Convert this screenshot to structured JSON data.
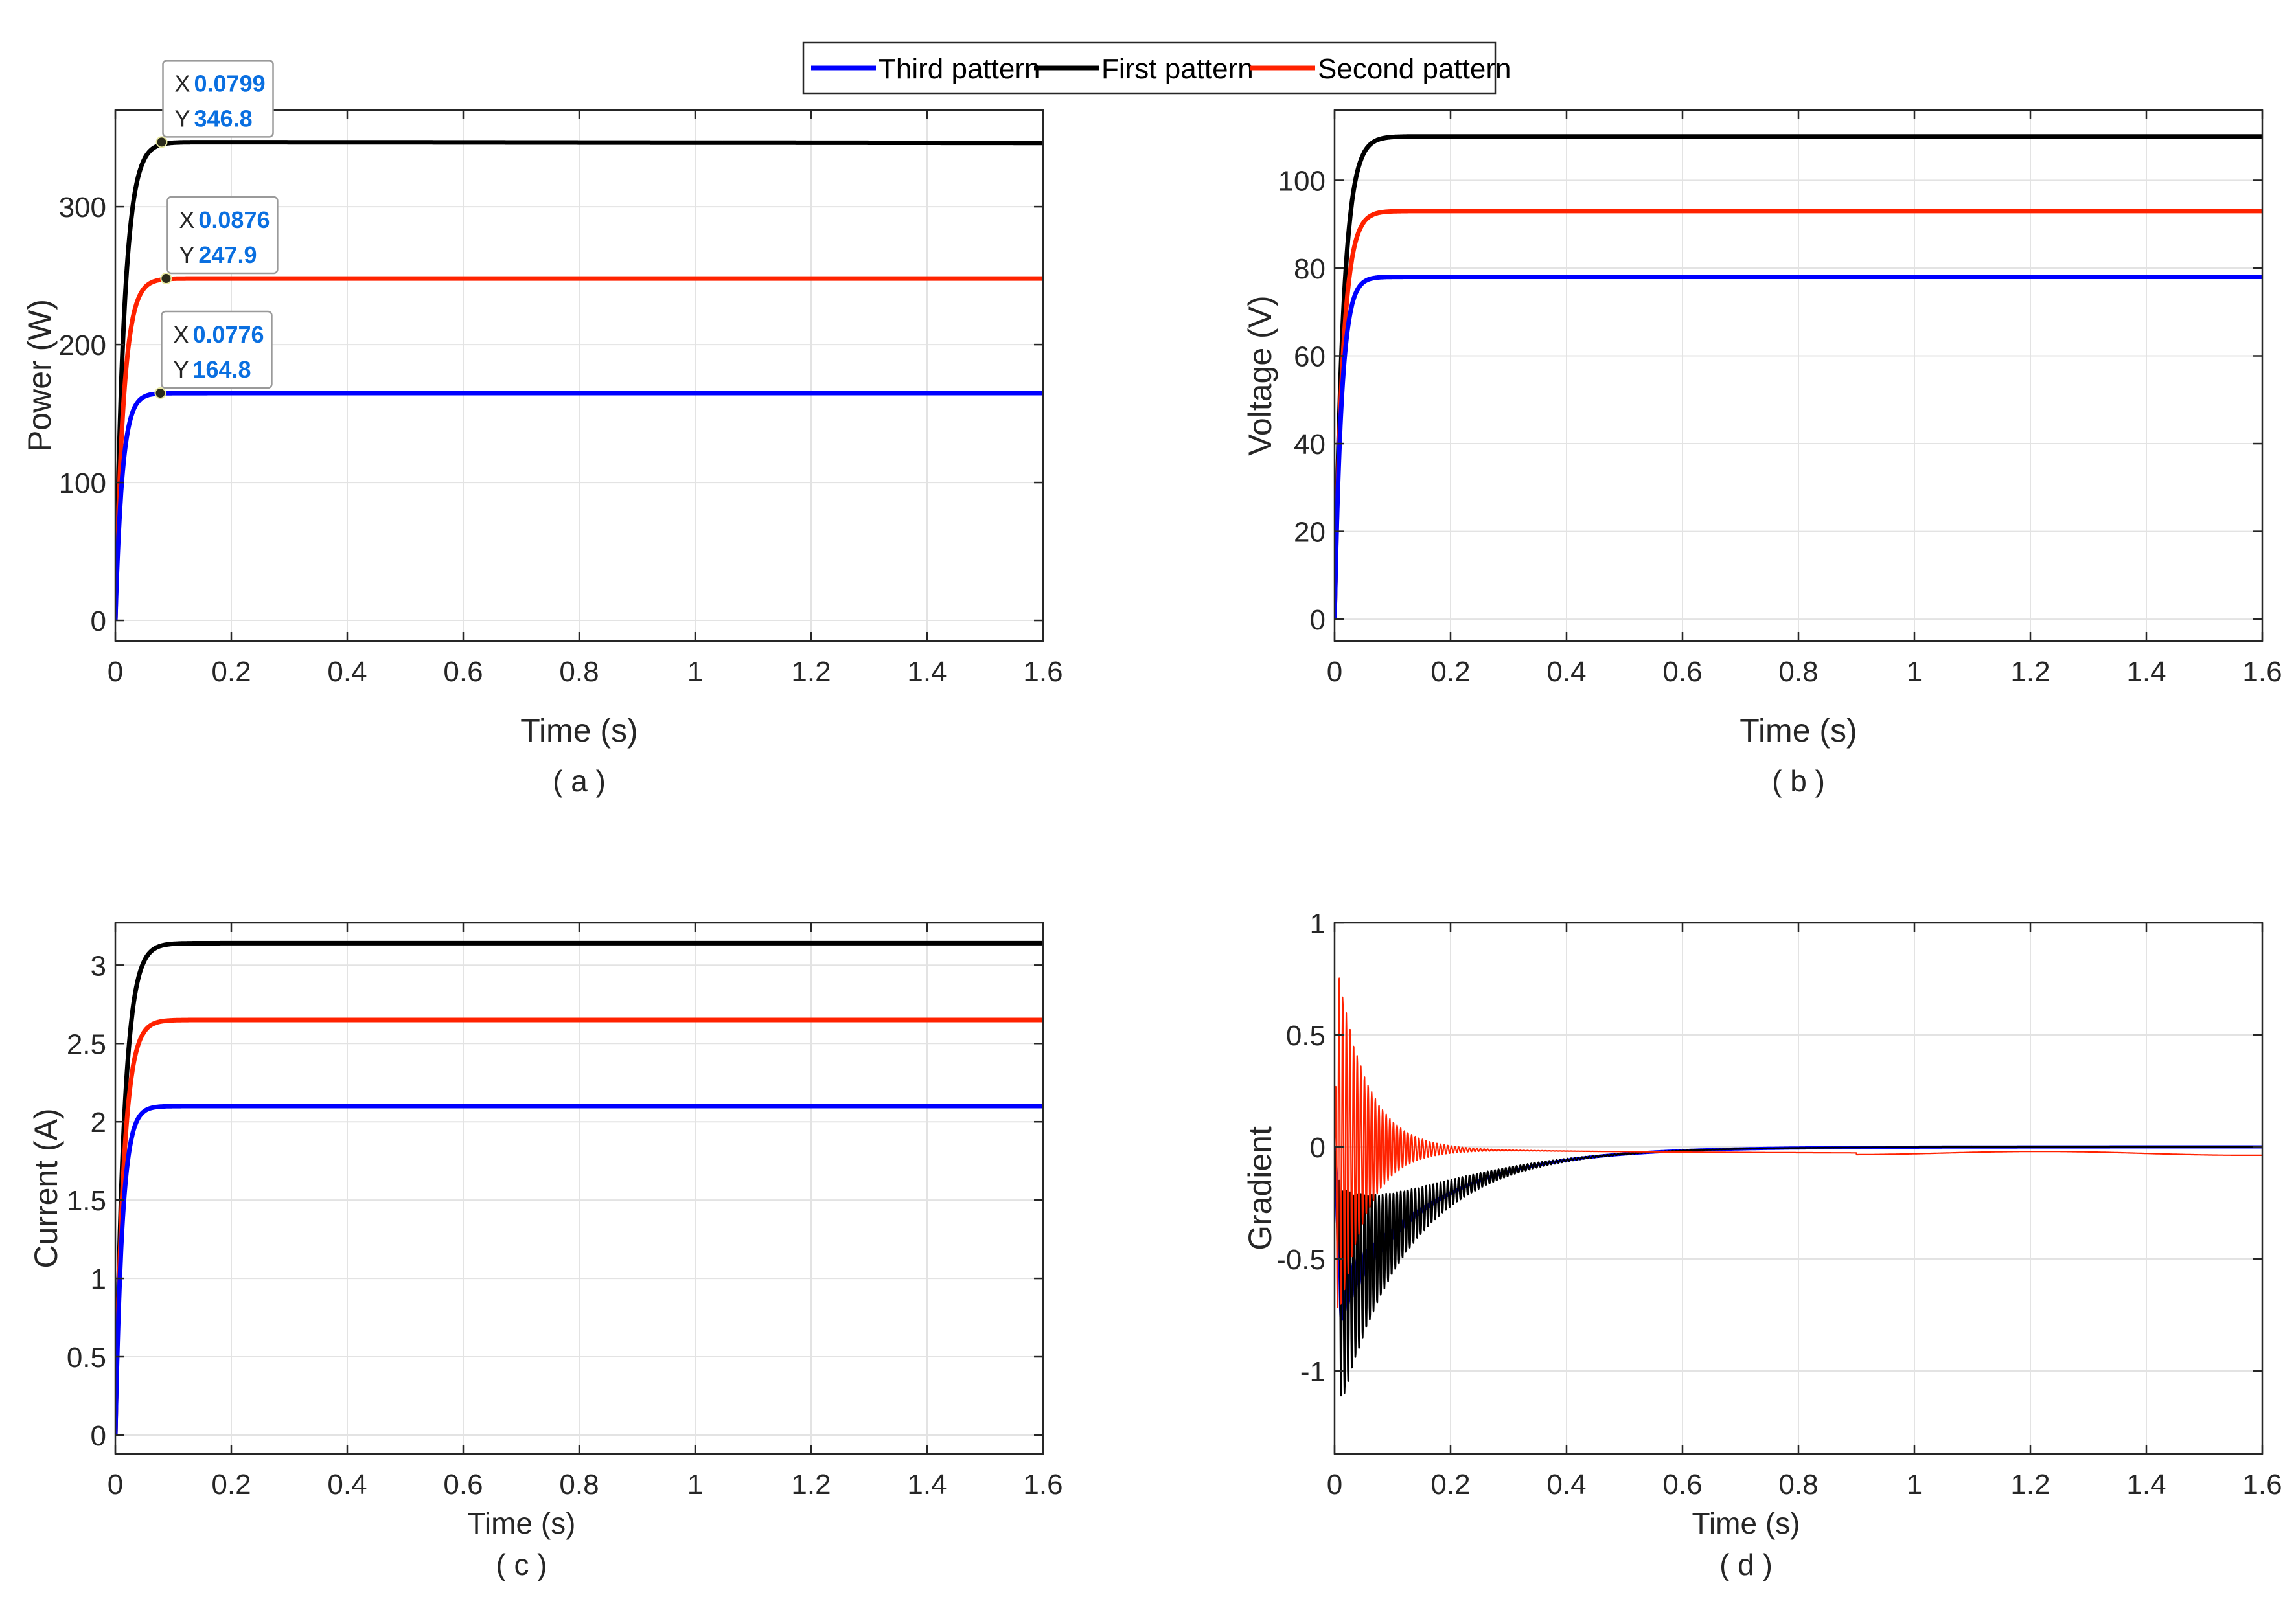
{
  "colors": {
    "third": "#0000ff",
    "first": "#000000",
    "second": "#ff2200",
    "grid": "#e3e3e3",
    "axis": "#262626",
    "datatip": "#0a6fe0"
  },
  "legend": {
    "placement": "top-center",
    "entries": [
      {
        "label": "Third pattern",
        "series": "third"
      },
      {
        "label": "First pattern",
        "series": "first"
      },
      {
        "label": "Second pattern",
        "series": "second"
      }
    ]
  },
  "chart_data": [
    {
      "id": "a",
      "type": "line",
      "caption": "( a )",
      "xlabel": "Time (s)",
      "ylabel": "Power (W)",
      "xlim": [
        0,
        1.6
      ],
      "ylim": [
        -15,
        370
      ],
      "grid": true,
      "xticks": [
        0,
        0.2,
        0.4,
        0.6,
        0.8,
        1,
        1.2,
        1.4,
        1.6
      ],
      "xtick_labels": [
        "0",
        "0.2",
        "0.4",
        "0.6",
        "0.8",
        "1",
        "1.2",
        "1.4",
        "1.6"
      ],
      "yticks": [
        0,
        100,
        200,
        300
      ],
      "ytick_labels": [
        "0",
        "100",
        "200",
        "300"
      ],
      "series": [
        {
          "name": "Third pattern",
          "key": "third",
          "final": 164.8,
          "tau": 0.012,
          "end": 164.8
        },
        {
          "name": "First pattern",
          "key": "first",
          "final": 346.8,
          "tau": 0.015,
          "end": 346.2
        },
        {
          "name": "Second pattern",
          "key": "second",
          "final": 247.9,
          "tau": 0.014,
          "end": 247.9
        }
      ],
      "datatips": [
        {
          "series": "first",
          "x": 0.0799,
          "y": 346.8,
          "x_label": "X",
          "x_text": "0.0799",
          "y_label": "Y",
          "y_text": "346.8"
        },
        {
          "series": "second",
          "x": 0.0876,
          "y": 247.9,
          "x_label": "X",
          "x_text": "0.0876",
          "y_label": "Y",
          "y_text": "247.9"
        },
        {
          "series": "third",
          "x": 0.0776,
          "y": 164.8,
          "x_label": "X",
          "x_text": "0.0776",
          "y_label": "Y",
          "y_text": "164.8"
        }
      ]
    },
    {
      "id": "b",
      "type": "line",
      "caption": "( b )",
      "xlabel": "Time (s)",
      "ylabel": "Voltage (V)",
      "xlim": [
        0,
        1.6
      ],
      "ylim": [
        -5,
        116
      ],
      "grid": true,
      "xticks": [
        0,
        0.2,
        0.4,
        0.6,
        0.8,
        1,
        1.2,
        1.4,
        1.6
      ],
      "xtick_labels": [
        "0",
        "0.2",
        "0.4",
        "0.6",
        "0.8",
        "1",
        "1.2",
        "1.4",
        "1.6"
      ],
      "yticks": [
        0,
        20,
        40,
        60,
        80,
        100
      ],
      "ytick_labels": [
        "0",
        "20",
        "40",
        "60",
        "80",
        "100"
      ],
      "series": [
        {
          "name": "Third pattern",
          "key": "third",
          "final": 78,
          "tau": 0.012,
          "end": 78
        },
        {
          "name": "First pattern",
          "key": "first",
          "final": 110,
          "tau": 0.015,
          "end": 110
        },
        {
          "name": "Second pattern",
          "key": "second",
          "final": 93,
          "tau": 0.014,
          "end": 93
        }
      ]
    },
    {
      "id": "c",
      "type": "line",
      "caption": "( c )",
      "xlabel": "Time (s)",
      "ylabel": "Current (A)",
      "xlim": [
        0,
        1.6
      ],
      "ylim": [
        -0.12,
        3.27
      ],
      "grid": true,
      "xticks": [
        0,
        0.2,
        0.4,
        0.6,
        0.8,
        1,
        1.2,
        1.4,
        1.6
      ],
      "xtick_labels": [
        "0",
        "0.2",
        "0.4",
        "0.6",
        "0.8",
        "1",
        "1.2",
        "1.4",
        "1.6"
      ],
      "yticks": [
        0,
        0.5,
        1,
        1.5,
        2,
        2.5,
        3
      ],
      "ytick_labels": [
        "0",
        "0.5",
        "1",
        "1.5",
        "2",
        "2.5",
        "3"
      ],
      "series": [
        {
          "name": "Third pattern",
          "key": "third",
          "final": 2.1,
          "tau": 0.012,
          "end": 2.1
        },
        {
          "name": "First pattern",
          "key": "first",
          "final": 3.14,
          "tau": 0.015,
          "end": 3.14
        },
        {
          "name": "Second pattern",
          "key": "second",
          "final": 2.65,
          "tau": 0.014,
          "end": 2.65
        }
      ]
    },
    {
      "id": "d",
      "type": "line",
      "caption": "( d )",
      "xlabel": "Time (s)",
      "ylabel": "Gradient",
      "xlim": [
        0,
        1.6
      ],
      "ylim": [
        -1.37,
        1
      ],
      "grid": true,
      "xticks": [
        0,
        0.2,
        0.4,
        0.6,
        0.8,
        1,
        1.2,
        1.4,
        1.6
      ],
      "xtick_labels": [
        "0",
        "0.2",
        "0.4",
        "0.6",
        "0.8",
        "1",
        "1.2",
        "1.4",
        "1.6"
      ],
      "yticks": [
        -1,
        -0.5,
        0,
        0.5,
        1
      ],
      "ytick_labels": [
        "-1",
        "-0.5",
        "0",
        "0.5",
        "1"
      ],
      "series": [
        {
          "name": "Third pattern",
          "key": "third",
          "offset": -0.72,
          "decay": 0.16,
          "osc_amp": 0.12,
          "osc_decay": 0.06,
          "end": 0.0
        },
        {
          "name": "First pattern",
          "key": "first",
          "offset": -0.72,
          "decay": 0.16,
          "osc_amp": 0.55,
          "osc_decay": 0.09,
          "end": 0.0
        },
        {
          "name": "Second pattern",
          "key": "second",
          "offset": 0.0,
          "decay": 0.3,
          "osc_amp": 0.9,
          "osc_decay": 0.05,
          "end": -0.03
        }
      ]
    }
  ]
}
